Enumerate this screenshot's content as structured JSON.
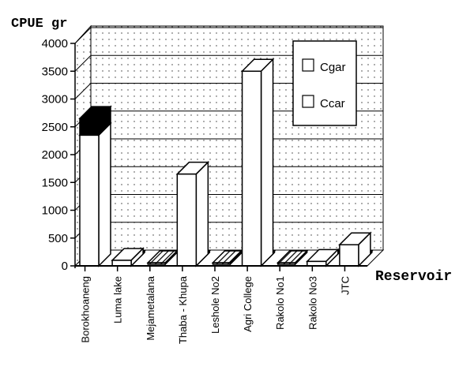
{
  "chart_data": {
    "type": "bar",
    "subtype": "3d-stacked-bar",
    "title": "",
    "ylabel": "CPUE gr",
    "xlabel": "Reservoir",
    "ylim": [
      0,
      4000
    ],
    "yticks": [
      0,
      500,
      1000,
      1500,
      2000,
      2500,
      3000,
      3500,
      4000
    ],
    "grid": true,
    "legend_position": "upper right (inside)",
    "categories": [
      "Borokhoaneng",
      "Luma lake",
      "Mejametalana",
      "Thaba - Khupa",
      "Leshole No2",
      "Agri College",
      "Rakolo No1",
      "Rakolo No3",
      "JTC"
    ],
    "series": [
      {
        "name": "Cgar",
        "values": [
          2350,
          100,
          0,
          1650,
          0,
          3500,
          0,
          80,
          380
        ]
      },
      {
        "name": "Ccar",
        "values": [
          300,
          0,
          0,
          0,
          0,
          0,
          0,
          0,
          0
        ]
      }
    ]
  },
  "labels": {
    "y_title": "CPUE gr",
    "x_title": "Reservoir",
    "legend": [
      "Cgar",
      "Ccar"
    ],
    "yticks": [
      "0",
      "500",
      "1000",
      "1500",
      "2000",
      "2500",
      "3000",
      "3500",
      "4000"
    ],
    "categories": [
      "Borokhoaneng",
      "Luma lake",
      "Mejametalana",
      "Thaba - Khupa",
      "Leshole No2",
      "Agri College",
      "Rakolo No1",
      "Rakolo No3",
      "JTC"
    ]
  }
}
